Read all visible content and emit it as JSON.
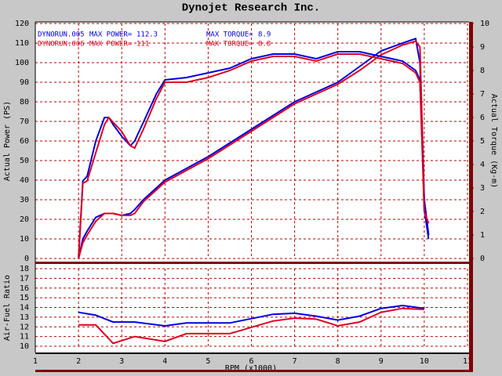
{
  "chart_data": [
    {
      "type": "line",
      "title": "Dynojet Research Inc.",
      "ylabel": "Actual Power (PS)",
      "y2label": "Actual Torque (Kg-m)",
      "legend_labels": [
        "MAX POWER=",
        "MAX TORQUE="
      ],
      "legend": [
        {
          "name": "DYNORUN.005",
          "color": "#0000e0",
          "max_power": 112.3,
          "max_torque": 8.9
        },
        {
          "name": "DYNORUN.006",
          "color": "#e00020",
          "max_power": 111.0,
          "max_torque": 8.8
        }
      ],
      "x": [
        2.0,
        2.1,
        2.2,
        2.4,
        2.6,
        2.7,
        2.8,
        3.0,
        3.2,
        3.3,
        3.5,
        3.8,
        4.0,
        4.5,
        5.0,
        5.5,
        6.0,
        6.5,
        7.0,
        7.5,
        8.0,
        8.5,
        9.0,
        9.5,
        9.8,
        9.9,
        10.0,
        10.1
      ],
      "series": [
        {
          "color": "#0000e0",
          "values": [
            0,
            10,
            14,
            21,
            23,
            23,
            23,
            22,
            23,
            25,
            30,
            36,
            40,
            46,
            52,
            59,
            66,
            73,
            80,
            85,
            90,
            98,
            106,
            110,
            112.3,
            100,
            25,
            10
          ]
        },
        {
          "color": "#e00020",
          "values": [
            0,
            8,
            12,
            19,
            23,
            23,
            23,
            22,
            22,
            23,
            29,
            35,
            39,
            45,
            51,
            58,
            65,
            72,
            79,
            84,
            89,
            96,
            104,
            109,
            111,
            108,
            30,
            12
          ]
        },
        {
          "color": "#0000e0",
          "axis": "y2",
          "values": [
            0,
            3.3,
            3.5,
            5.0,
            6.0,
            6.0,
            5.7,
            5.2,
            4.8,
            5.0,
            5.8,
            7.0,
            7.6,
            7.7,
            7.9,
            8.1,
            8.5,
            8.7,
            8.7,
            8.5,
            8.8,
            8.8,
            8.6,
            8.4,
            8.0,
            7.6,
            2.5,
            1.0
          ]
        },
        {
          "color": "#e00020",
          "axis": "y2",
          "values": [
            0,
            3.2,
            3.3,
            4.5,
            5.7,
            6.0,
            5.8,
            5.4,
            4.8,
            4.7,
            5.5,
            6.8,
            7.5,
            7.5,
            7.7,
            8.0,
            8.4,
            8.6,
            8.6,
            8.4,
            8.7,
            8.7,
            8.5,
            8.3,
            7.9,
            7.5,
            2.0,
            1.5
          ]
        }
      ],
      "xlim": [
        1,
        11
      ],
      "ylim": [
        0,
        120
      ],
      "yticks": [
        0,
        10,
        20,
        30,
        40,
        50,
        60,
        70,
        80,
        90,
        100,
        110,
        120
      ],
      "y2lim": [
        0,
        10
      ],
      "y2ticks": [
        0,
        1,
        2,
        3,
        4,
        5,
        6,
        7,
        8,
        9,
        10
      ],
      "grid": true
    },
    {
      "type": "line",
      "ylabel": "Air-Fuel Ratio",
      "xlabel": "RPM (x1000)",
      "x": [
        2.0,
        2.4,
        2.8,
        3.3,
        4.0,
        4.5,
        5.5,
        6.5,
        7.0,
        7.5,
        8.0,
        8.5,
        9.0,
        9.5,
        10.0
      ],
      "series": [
        {
          "color": "#0000e0",
          "values": [
            13.5,
            13.2,
            12.5,
            12.5,
            12.1,
            12.4,
            12.4,
            13.3,
            13.4,
            13.1,
            12.7,
            13.1,
            13.9,
            14.2,
            13.9
          ]
        },
        {
          "color": "#e00020",
          "values": [
            12.2,
            12.2,
            10.3,
            11.0,
            10.5,
            11.3,
            11.3,
            12.6,
            12.9,
            12.8,
            12.1,
            12.5,
            13.5,
            13.9,
            13.8
          ]
        }
      ],
      "xlim": [
        1,
        11
      ],
      "xticks": [
        1,
        2,
        3,
        4,
        5,
        6,
        7,
        8,
        9,
        10,
        11
      ],
      "ylim": [
        10,
        18
      ],
      "yticks": [
        10,
        11,
        12,
        13,
        14,
        15,
        16,
        17,
        18
      ],
      "grid": true
    }
  ]
}
